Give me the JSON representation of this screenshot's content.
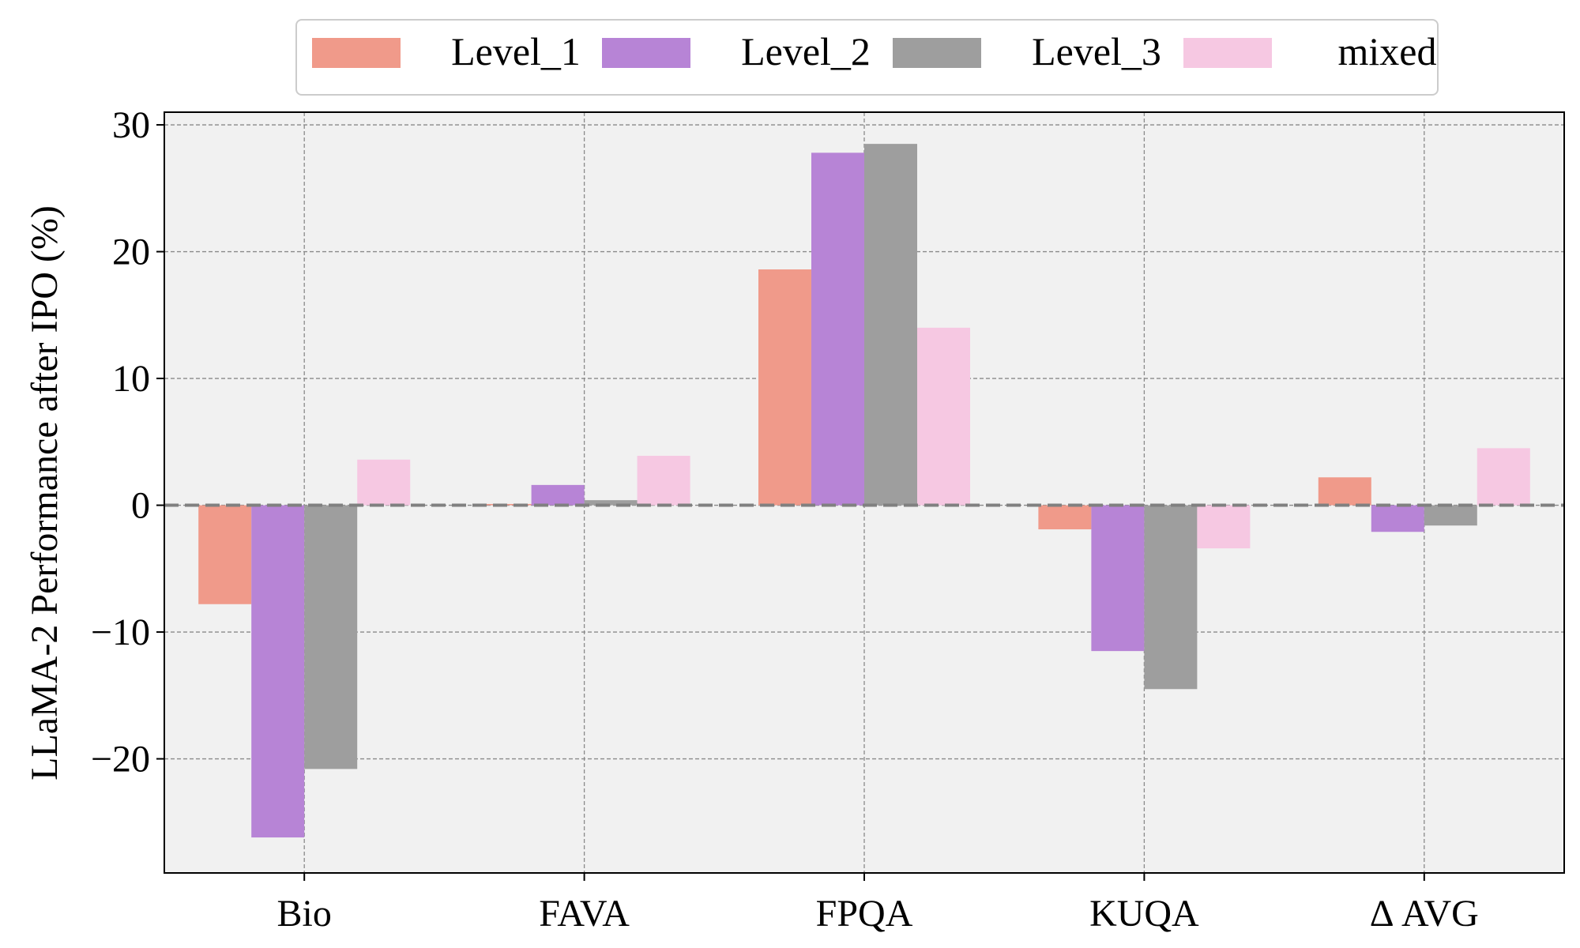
{
  "chart_data": {
    "type": "bar",
    "title": "",
    "xlabel": "",
    "ylabel": "LLaMA-2 Performance after IPO (%)",
    "ylim": [
      -29,
      31
    ],
    "yticks": [
      -20,
      -10,
      0,
      10,
      20,
      30
    ],
    "ytick_labels": [
      "−20",
      "−10",
      "0",
      "10",
      "20",
      "30"
    ],
    "grid": true,
    "zero_line": true,
    "legend_position": "top-center",
    "categories": [
      "Bio",
      "FAVA",
      "FPQA",
      "KUQA",
      "Δ AVG"
    ],
    "series": [
      {
        "name": "Level_1",
        "color": "#f09a8a",
        "values": [
          -7.8,
          0.1,
          18.6,
          -1.9,
          2.2
        ]
      },
      {
        "name": "Level_2",
        "color": "#b784d6",
        "values": [
          -26.2,
          1.6,
          27.8,
          -11.5,
          -2.1
        ]
      },
      {
        "name": "Level_3",
        "color": "#9e9e9e",
        "values": [
          -20.8,
          0.4,
          28.5,
          -14.5,
          -1.6
        ]
      },
      {
        "name": "mixed",
        "color": "#f6c8e2",
        "values": [
          3.6,
          3.9,
          14.0,
          -3.4,
          4.5
        ]
      }
    ]
  },
  "colors": {
    "plot_background": "#f1f1f1",
    "grid": "#8a8a8a",
    "zero_line": "#808080"
  }
}
